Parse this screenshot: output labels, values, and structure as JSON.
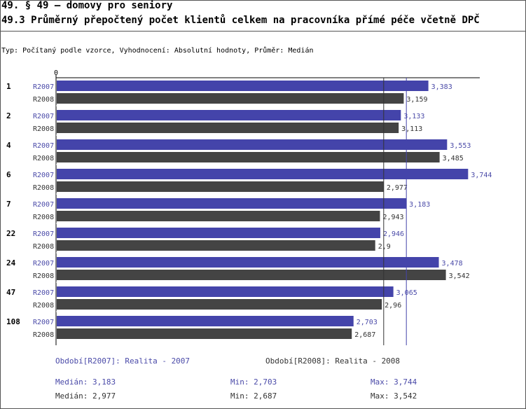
{
  "header": {
    "title": "49. § 49 – domovy pro seniory",
    "subtitle": "49.3 Průměrný přepočtený počet klientů celkem na pracovníka přímé péče včetně DPČ",
    "type_line": "Typ: Počítaný podle vzorce, Vyhodnocení: Absolutní hodnoty, Průměr: Medián"
  },
  "colors": {
    "series1": "#4444aa",
    "series2": "#444444",
    "label1": "#4a4aa8",
    "label2": "#333333"
  },
  "chart_data": {
    "type": "bar",
    "orientation": "horizontal",
    "axis_zero_label": "0",
    "xlim": [
      0,
      3.85
    ],
    "categories": [
      "1",
      "2",
      "4",
      "6",
      "7",
      "22",
      "24",
      "47",
      "108"
    ],
    "series": [
      {
        "name": "R2007",
        "values": [
          3.383,
          3.133,
          3.553,
          3.744,
          3.183,
          2.946,
          3.478,
          3.065,
          2.703
        ],
        "labels": [
          "3,383",
          "3,133",
          "3,553",
          "3,744",
          "3,183",
          "2,946",
          "3,478",
          "3,065",
          "2,703"
        ]
      },
      {
        "name": "R2008",
        "values": [
          3.159,
          3.113,
          3.485,
          2.977,
          2.943,
          2.9,
          3.542,
          2.96,
          2.687
        ],
        "labels": [
          "3,159",
          "3,113",
          "3,485",
          "2,977",
          "2,943",
          "2,9",
          "3,542",
          "2,96",
          "2,687"
        ]
      }
    ],
    "median_lines": [
      2.977,
      3.183
    ]
  },
  "legend": {
    "period1": "Období[R2007]: Realita - 2007",
    "period2": "Období[R2008]: Realita - 2008",
    "stats1": {
      "median": "Medián: 3,183",
      "min": "Min: 2,703",
      "max": "Max: 3,744"
    },
    "stats2": {
      "median": "Medián: 2,977",
      "min": "Min: 2,687",
      "max": "Max: 3,542"
    }
  }
}
